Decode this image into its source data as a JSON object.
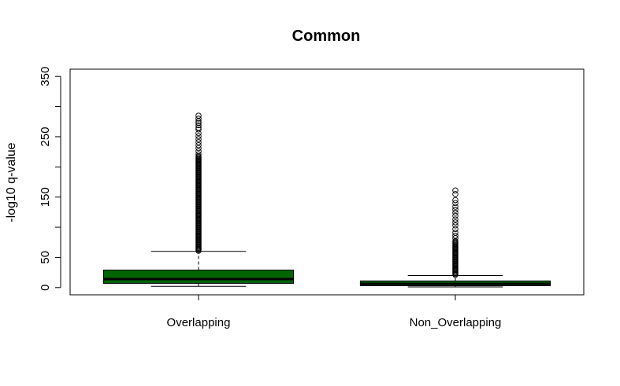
{
  "chart_data": {
    "type": "boxplot",
    "title": "Common",
    "ylabel": "-log10 q-value",
    "xlabel": "",
    "ylim": [
      -12,
      362
    ],
    "yticks": [
      0,
      50,
      150,
      250,
      350
    ],
    "yticks_minor": [
      100,
      200,
      300
    ],
    "categories": [
      "Overlapping",
      "Non_Overlapping"
    ],
    "boxes": [
      {
        "category": "Overlapping",
        "fill": "#006400",
        "whisker_low": 2,
        "q1": 7,
        "median": 14,
        "q3": 29,
        "whisker_high": 60,
        "outlier_range": [
          61,
          218
        ],
        "outliers": [
          221,
          226,
          231,
          236,
          241,
          246,
          251,
          256,
          262,
          265,
          269,
          273,
          276,
          280,
          285
        ]
      },
      {
        "category": "Non_Overlapping",
        "fill": "#006400",
        "whisker_low": 1,
        "q1": 3,
        "median": 6,
        "q3": 11,
        "whisker_high": 20,
        "outlier_range": [
          21,
          78
        ],
        "outliers": [
          82,
          86,
          91,
          97,
          103,
          108,
          113,
          119,
          124,
          129,
          134,
          140,
          145,
          155,
          161
        ]
      }
    ]
  }
}
